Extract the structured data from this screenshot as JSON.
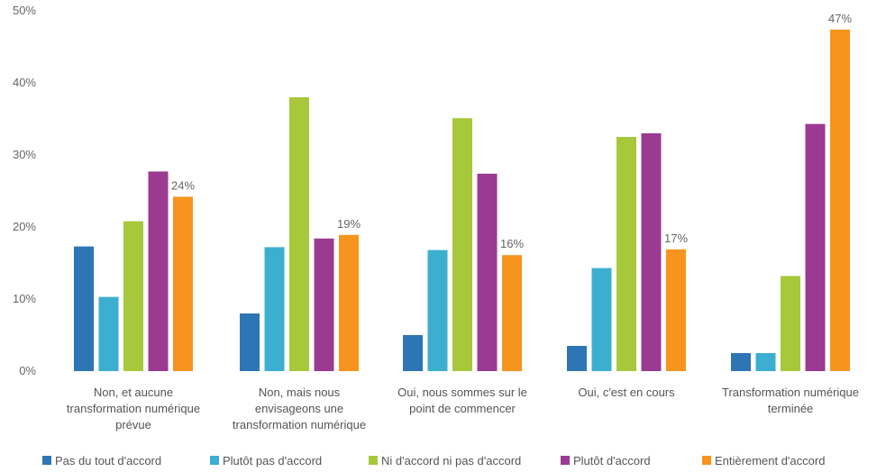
{
  "chart_data": {
    "type": "bar",
    "categories": [
      "Non, et aucune transformation numérique prévue",
      "Non, mais nous envisageons une transformation numérique",
      "Oui, nous sommes sur le point de commencer",
      "Oui, c'est en cours",
      "Transformation numérique terminée"
    ],
    "category_lines": [
      [
        "Non, et aucune",
        "transformation numérique",
        "prévue"
      ],
      [
        "Non, mais nous",
        "envisageons une",
        "transformation numérique"
      ],
      [
        "Oui, nous sommes sur le",
        "point de commencer"
      ],
      [
        "Oui, c'est en cours"
      ],
      [
        "Transformation numérique",
        "terminée"
      ]
    ],
    "series": [
      {
        "name": "Pas du tout d'accord",
        "color": "#2E75B6",
        "values": [
          17.3,
          8.0,
          5.0,
          3.5,
          2.5
        ]
      },
      {
        "name": "Plutôt pas d'accord",
        "color": "#3CAFD0",
        "values": [
          10.3,
          17.2,
          16.8,
          14.3,
          2.5
        ]
      },
      {
        "name": "Ni d'accord ni pas d'accord",
        "color": "#A6C83A",
        "values": [
          20.8,
          38.0,
          35.1,
          32.5,
          13.2
        ]
      },
      {
        "name": "Plutôt d'accord",
        "color": "#9B3A91",
        "values": [
          27.7,
          18.4,
          27.4,
          33.0,
          34.3
        ]
      },
      {
        "name": "Entièrement d'accord",
        "color": "#F7941D",
        "values": [
          24.2,
          18.9,
          16.1,
          16.9,
          47.4
        ]
      }
    ],
    "data_labels": [
      "24%",
      "19%",
      "16%",
      "17%",
      "47%"
    ],
    "y_ticks": [
      "0%",
      "10%",
      "20%",
      "30%",
      "40%",
      "50%"
    ],
    "ylim": [
      0,
      50
    ],
    "grid": false,
    "legend_position": "bottom"
  }
}
